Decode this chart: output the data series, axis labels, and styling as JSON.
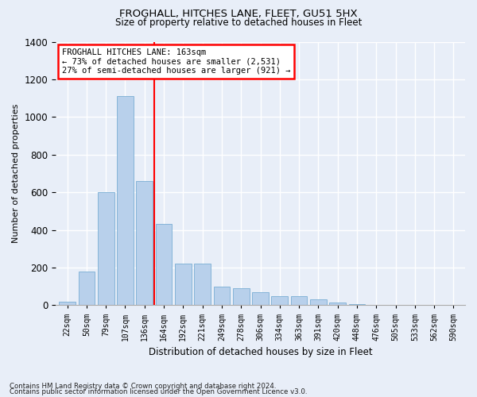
{
  "title1": "FROGHALL, HITCHES LANE, FLEET, GU51 5HX",
  "title2": "Size of property relative to detached houses in Fleet",
  "xlabel": "Distribution of detached houses by size in Fleet",
  "ylabel": "Number of detached properties",
  "categories": [
    "22sqm",
    "50sqm",
    "79sqm",
    "107sqm",
    "136sqm",
    "164sqm",
    "192sqm",
    "221sqm",
    "249sqm",
    "278sqm",
    "306sqm",
    "334sqm",
    "363sqm",
    "391sqm",
    "420sqm",
    "448sqm",
    "476sqm",
    "505sqm",
    "533sqm",
    "562sqm",
    "590sqm"
  ],
  "values": [
    20,
    180,
    600,
    1110,
    660,
    430,
    220,
    220,
    100,
    90,
    70,
    50,
    50,
    30,
    15,
    5,
    3,
    2,
    1,
    1,
    1
  ],
  "bar_color": "#b8d0eb",
  "bar_edge_color": "#7aaed4",
  "annotation_text": "FROGHALL HITCHES LANE: 163sqm\n← 73% of detached houses are smaller (2,531)\n27% of semi-detached houses are larger (921) →",
  "vline_x_index": 4.5,
  "footer1": "Contains HM Land Registry data © Crown copyright and database right 2024.",
  "footer2": "Contains public sector information licensed under the Open Government Licence v3.0.",
  "bg_color": "#e8eef8",
  "plot_bg_color": "#e8eef8",
  "grid_color": "#ffffff",
  "ylim": [
    0,
    1400
  ],
  "yticks": [
    0,
    200,
    400,
    600,
    800,
    1000,
    1200,
    1400
  ]
}
